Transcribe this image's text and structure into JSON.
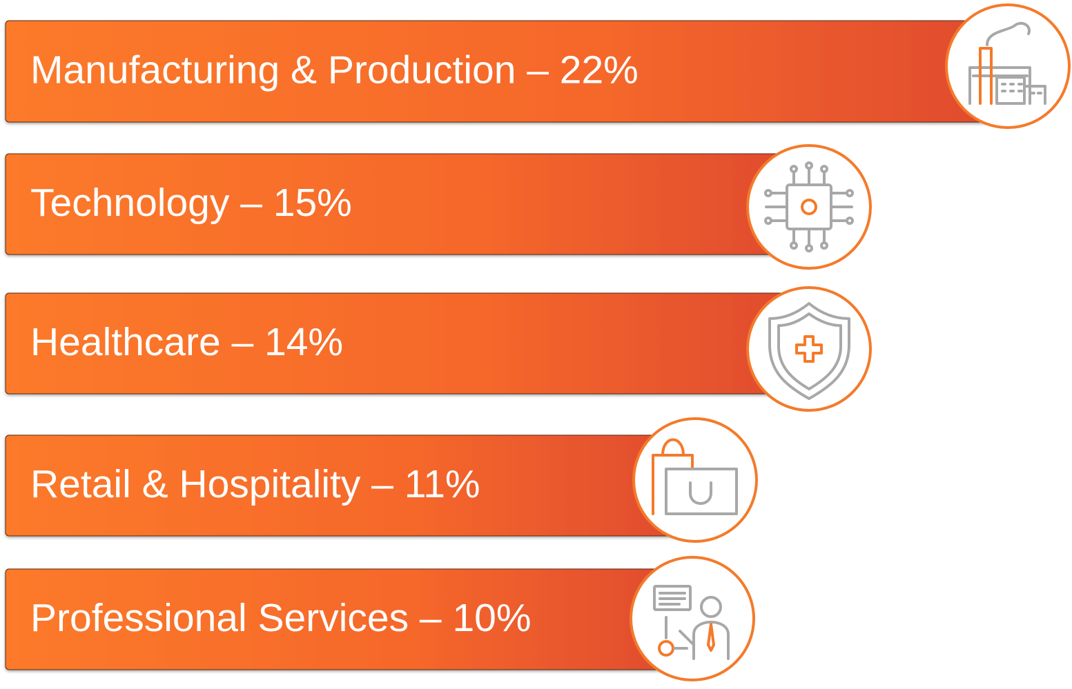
{
  "items": [
    {
      "label": "Manufacturing & Production – 22%"
    },
    {
      "label": "Technology – 15%"
    },
    {
      "label": "Healthcare – 14%"
    },
    {
      "label": "Retail & Hospitality – 11%"
    },
    {
      "label": "Professional Services – 10%"
    }
  ]
}
